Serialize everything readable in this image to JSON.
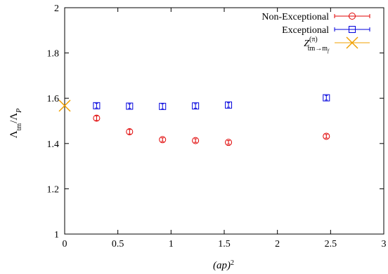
{
  "chart_data": {
    "type": "scatter",
    "title": "",
    "xlabel": "(ap)²",
    "ylabel": "Λtm/ΛP",
    "xlim": [
      0,
      3
    ],
    "ylim": [
      1,
      2
    ],
    "xticks": [
      0,
      0.5,
      1,
      1.5,
      2,
      2.5,
      3
    ],
    "xtick_labels": [
      "0",
      "0.5",
      "1",
      "1.5",
      "2",
      "2.5",
      "3"
    ],
    "yticks": [
      1,
      1.2,
      1.4,
      1.6,
      1.8,
      2
    ],
    "ytick_labels": [
      "1",
      "1.2",
      "1.4",
      "1.6",
      "1.8",
      "2"
    ],
    "grid": false,
    "legend_position": "top-right",
    "series": [
      {
        "name": "Non-Exceptional",
        "marker": "circle",
        "color": "#e00000",
        "points": [
          {
            "x": 0.3,
            "y": 1.512,
            "err": 0.01
          },
          {
            "x": 0.61,
            "y": 1.452,
            "err": 0.01
          },
          {
            "x": 0.92,
            "y": 1.417,
            "err": 0.008
          },
          {
            "x": 1.23,
            "y": 1.413,
            "err": 0.008
          },
          {
            "x": 1.54,
            "y": 1.405,
            "err": 0.008
          },
          {
            "x": 2.46,
            "y": 1.432,
            "err": 0.008
          }
        ]
      },
      {
        "name": "Exceptional",
        "marker": "square",
        "color": "#0000dd",
        "points": [
          {
            "x": 0.3,
            "y": 1.567,
            "err": 0.01
          },
          {
            "x": 0.61,
            "y": 1.565,
            "err": 0.01
          },
          {
            "x": 0.92,
            "y": 1.564,
            "err": 0.012
          },
          {
            "x": 1.23,
            "y": 1.566,
            "err": 0.01
          },
          {
            "x": 1.54,
            "y": 1.57,
            "err": 0.01
          },
          {
            "x": 2.46,
            "y": 1.602,
            "err": 0.01
          }
        ]
      },
      {
        "name": "Z_{tm→m_f}^{(π)}",
        "marker": "cross",
        "color": "#f0a000",
        "points": [
          {
            "x": 0.0,
            "y": 1.567,
            "err": 0
          }
        ]
      }
    ]
  }
}
